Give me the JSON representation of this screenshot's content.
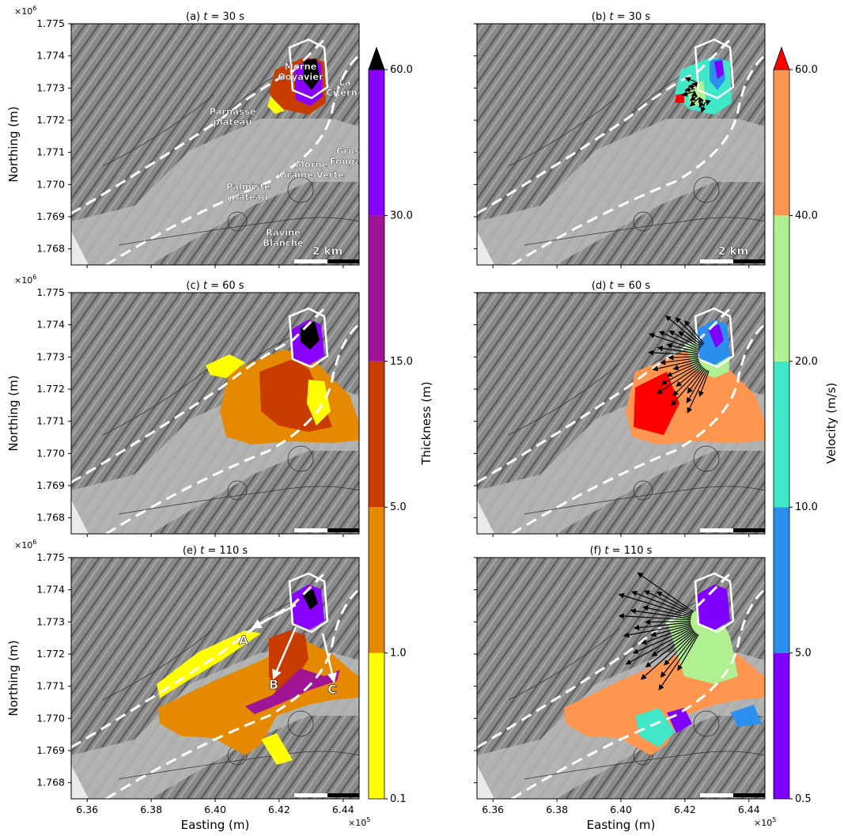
{
  "figure": {
    "ylabel": "Northing (m)",
    "xlabel": "Easting (m)",
    "y_exponent_base": "×10",
    "y_exponent_power": "6",
    "x_exponent_base": "×10",
    "x_exponent_power": "5",
    "scale_bar_label": "2 km"
  },
  "panels": [
    {
      "id": "a",
      "prefix": "(a) ",
      "var": "t",
      "suffix": " = 30 s",
      "time_s": 30,
      "field": "thickness",
      "show_place_names": true,
      "show_scale_label": true
    },
    {
      "id": "b",
      "prefix": "(b) ",
      "var": "t",
      "suffix": " = 30 s",
      "time_s": 30,
      "field": "velocity",
      "show_place_names": false,
      "show_scale_label": true
    },
    {
      "id": "c",
      "prefix": "(c) ",
      "var": "t",
      "suffix": " = 60 s",
      "time_s": 60,
      "field": "thickness",
      "show_place_names": false,
      "show_scale_label": false
    },
    {
      "id": "d",
      "prefix": "(d) ",
      "var": "t",
      "suffix": " = 60 s",
      "time_s": 60,
      "field": "velocity",
      "show_place_names": false,
      "show_scale_label": false
    },
    {
      "id": "e",
      "prefix": "(e) ",
      "var": "t",
      "suffix": " = 110 s",
      "time_s": 110,
      "field": "thickness",
      "show_place_names": false,
      "show_scale_label": false,
      "flow_paths": [
        "A",
        "B",
        "C"
      ]
    },
    {
      "id": "f",
      "prefix": "(f) ",
      "var": "t",
      "suffix": " = 110 s",
      "time_s": 110,
      "field": "velocity",
      "show_place_names": false,
      "show_scale_label": false
    }
  ],
  "place_names": [
    {
      "lines": [
        "Morne",
        "Goyavier"
      ]
    },
    {
      "lines": [
        "La",
        "Citerne"
      ]
    },
    {
      "lines": [
        "Parnasse",
        "plateau"
      ]
    },
    {
      "lines": [
        "Gros",
        "Fougas"
      ]
    },
    {
      "lines": [
        "Morne",
        "Graine Verte"
      ]
    },
    {
      "lines": [
        "Palmiste",
        "plateau"
      ]
    },
    {
      "lines": [
        "Ravine",
        "Blanche"
      ]
    }
  ],
  "colorbars": {
    "thickness": {
      "label": "Thickness (m)",
      "ticks": [
        "0.1",
        "1.0",
        "5.0",
        "15.0",
        "30.0",
        "60.0"
      ],
      "colors": [
        "#ffff00",
        "#e58a00",
        "#c83c00",
        "#a01496",
        "#8800ff"
      ],
      "extend_color": "#000000"
    },
    "velocity": {
      "label": "Velocity (m/s)",
      "ticks": [
        "0.5",
        "5.0",
        "10.0",
        "20.0",
        "40.0",
        "60.0"
      ],
      "colors": [
        "#8000ff",
        "#2b8ff0",
        "#40e8c8",
        "#b0f090",
        "#ff9650"
      ],
      "extend_color": "#ff0000"
    }
  },
  "chart_data": {
    "type": "map",
    "x_axis": {
      "label": "Easting (m)",
      "ticks": [
        636000,
        638000,
        640000,
        642000,
        644000
      ],
      "tick_labels": [
        "6.36",
        "6.38",
        "6.40",
        "6.42",
        "6.44"
      ],
      "exponent": "×10^5",
      "range": [
        635500,
        644500
      ]
    },
    "y_axis": {
      "label": "Northing (m)",
      "ticks": [
        1768000,
        1769000,
        1770000,
        1771000,
        1772000,
        1773000,
        1774000,
        1775000
      ],
      "tick_labels": [
        "1.768",
        "1.769",
        "1.770",
        "1.771",
        "1.772",
        "1.773",
        "1.774",
        "1.775"
      ],
      "exponent": "×10^6",
      "range": [
        1767500,
        1775000
      ]
    },
    "times_s": [
      30,
      60,
      110
    ],
    "fields": [
      "Thickness (m)",
      "Velocity (m/s)"
    ],
    "grid": false
  }
}
